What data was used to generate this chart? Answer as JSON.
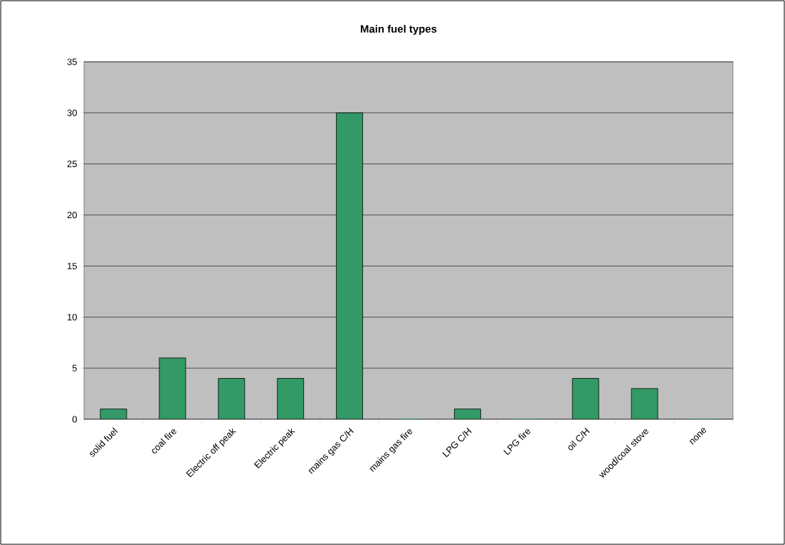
{
  "chart_data": {
    "type": "bar",
    "title": "Main fuel types",
    "categories": [
      "solid fuel",
      "coal fire",
      "Electric off peak",
      "Electric peak",
      "mains gas C/H",
      "mains gas fire",
      "LPG C/H",
      "LPG fire",
      "oil C/H",
      "wood/coal stove",
      "none"
    ],
    "values": [
      1,
      6,
      4,
      4,
      30,
      0,
      1,
      0,
      4,
      3,
      0
    ],
    "color": "#339966",
    "ylim": [
      0,
      35
    ],
    "yticks": [
      0,
      5,
      10,
      15,
      20,
      25,
      30,
      35
    ],
    "grid": "y"
  }
}
